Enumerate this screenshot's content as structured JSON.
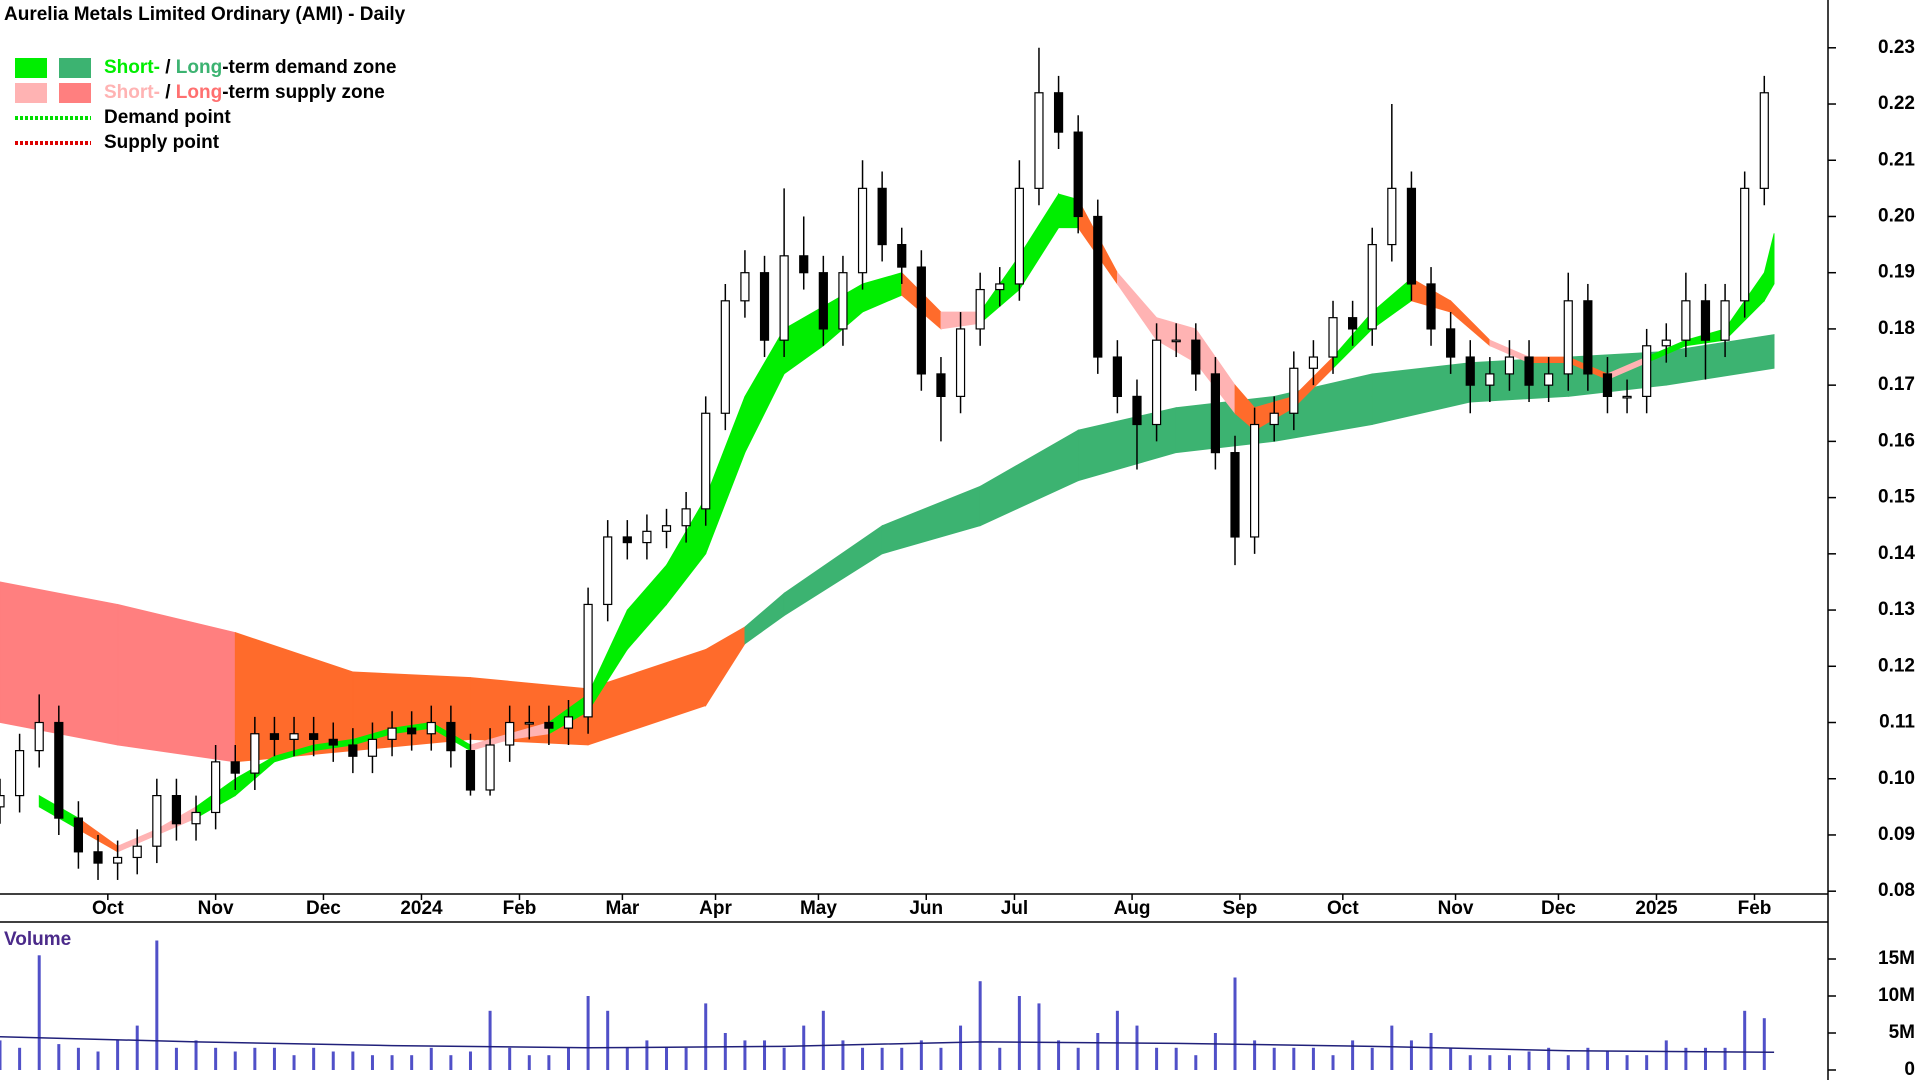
{
  "chart_data": {
    "type": "candlestick",
    "title": "Aurelia Metals Limited Ordinary (AMI) - Daily",
    "legend": [
      {
        "label_parts": [
          "Short-",
          " / ",
          "Long",
          "-term demand zone"
        ],
        "part_colors": [
          "#00ee00",
          "#000000",
          "#3cb371",
          "#000000"
        ],
        "swatch_colors": [
          "#00ee00",
          "#3cb371"
        ]
      },
      {
        "label_parts": [
          "Short-",
          " / ",
          "Long",
          "-term supply zone"
        ],
        "part_colors": [
          "#ffb3b3",
          "#000000",
          "#ff7070",
          "#000000"
        ],
        "swatch_colors": [
          "#ffb3b3",
          "#ff7f7f"
        ]
      },
      {
        "label": "Demand point",
        "line_color": "#00dd00"
      },
      {
        "label": "Supply point",
        "line_color": "#dd0000"
      }
    ],
    "x": [
      0,
      4,
      8,
      12,
      16,
      20,
      24,
      28,
      32,
      36,
      40,
      44,
      48,
      52,
      56,
      60,
      64,
      68,
      72,
      76,
      80,
      84,
      88,
      92,
      96,
      100,
      104,
      108,
      112,
      116,
      120,
      124,
      128,
      132,
      136,
      140,
      144,
      148,
      152,
      156,
      160,
      164,
      168,
      172,
      176,
      180,
      184,
      188,
      192,
      196,
      200,
      204,
      208,
      212,
      216,
      220,
      224,
      228,
      232,
      236,
      240,
      244,
      248,
      252,
      256,
      260,
      264,
      268,
      272,
      276,
      280,
      284,
      288,
      292,
      296,
      300,
      304,
      308,
      312,
      316,
      320,
      324,
      328,
      332,
      336,
      340,
      344,
      348,
      352,
      356,
      360
    ],
    "open": [
      0.095,
      0.097,
      0.105,
      0.11,
      0.093,
      0.087,
      0.085,
      0.086,
      0.088,
      0.097,
      0.092,
      0.094,
      0.103,
      0.101,
      0.108,
      0.107,
      0.108,
      0.107,
      0.106,
      0.104,
      0.107,
      0.109,
      0.108,
      0.11,
      0.105,
      0.098,
      0.106,
      0.11,
      0.11,
      0.109,
      0.111,
      0.131,
      0.143,
      0.142,
      0.144,
      0.145,
      0.148,
      0.165,
      0.185,
      0.19,
      0.178,
      0.193,
      0.19,
      0.18,
      0.19,
      0.205,
      0.195,
      0.191,
      0.172,
      0.168,
      0.18,
      0.187,
      0.188,
      0.205,
      0.222,
      0.215,
      0.2,
      0.175,
      0.168,
      0.163,
      0.178,
      0.178,
      0.172,
      0.158,
      0.143,
      0.163,
      0.165,
      0.173,
      0.175,
      0.182,
      0.18,
      0.195,
      0.205,
      0.188,
      0.18,
      0.175,
      0.17,
      0.172,
      0.175,
      0.17,
      0.172,
      0.185,
      0.172,
      0.168,
      0.168,
      0.177,
      0.178,
      0.185,
      0.178,
      0.185,
      0.205
    ],
    "high": [
      0.1,
      0.108,
      0.115,
      0.113,
      0.096,
      0.09,
      0.089,
      0.091,
      0.1,
      0.1,
      0.097,
      0.106,
      0.106,
      0.111,
      0.111,
      0.111,
      0.111,
      0.11,
      0.109,
      0.11,
      0.112,
      0.112,
      0.113,
      0.113,
      0.108,
      0.109,
      0.113,
      0.113,
      0.113,
      0.114,
      0.134,
      0.146,
      0.146,
      0.147,
      0.148,
      0.151,
      0.168,
      0.188,
      0.194,
      0.193,
      0.205,
      0.2,
      0.193,
      0.193,
      0.21,
      0.208,
      0.198,
      0.194,
      0.175,
      0.183,
      0.19,
      0.191,
      0.21,
      0.23,
      0.225,
      0.218,
      0.203,
      0.178,
      0.171,
      0.181,
      0.181,
      0.181,
      0.175,
      0.161,
      0.166,
      0.168,
      0.176,
      0.178,
      0.185,
      0.185,
      0.198,
      0.22,
      0.208,
      0.191,
      0.183,
      0.178,
      0.175,
      0.178,
      0.178,
      0.175,
      0.19,
      0.188,
      0.175,
      0.171,
      0.18,
      0.181,
      0.19,
      0.188,
      0.188,
      0.208,
      0.225
    ],
    "low": [
      0.092,
      0.094,
      0.102,
      0.09,
      0.084,
      0.082,
      0.082,
      0.083,
      0.085,
      0.089,
      0.089,
      0.091,
      0.098,
      0.098,
      0.104,
      0.104,
      0.104,
      0.103,
      0.101,
      0.101,
      0.104,
      0.105,
      0.105,
      0.102,
      0.097,
      0.097,
      0.103,
      0.107,
      0.106,
      0.106,
      0.108,
      0.128,
      0.139,
      0.139,
      0.141,
      0.142,
      0.145,
      0.162,
      0.182,
      0.175,
      0.175,
      0.187,
      0.177,
      0.177,
      0.187,
      0.192,
      0.188,
      0.169,
      0.16,
      0.165,
      0.177,
      0.184,
      0.185,
      0.202,
      0.212,
      0.197,
      0.172,
      0.165,
      0.155,
      0.16,
      0.175,
      0.169,
      0.155,
      0.138,
      0.14,
      0.16,
      0.162,
      0.17,
      0.172,
      0.177,
      0.177,
      0.192,
      0.185,
      0.177,
      0.172,
      0.165,
      0.167,
      0.169,
      0.167,
      0.167,
      0.169,
      0.169,
      0.165,
      0.165,
      0.165,
      0.174,
      0.175,
      0.171,
      0.175,
      0.182,
      0.202
    ],
    "close": [
      0.097,
      0.105,
      0.11,
      0.093,
      0.087,
      0.085,
      0.086,
      0.088,
      0.097,
      0.092,
      0.094,
      0.103,
      0.101,
      0.108,
      0.107,
      0.108,
      0.107,
      0.106,
      0.104,
      0.107,
      0.109,
      0.108,
      0.11,
      0.105,
      0.098,
      0.106,
      0.11,
      0.11,
      0.109,
      0.111,
      0.131,
      0.143,
      0.142,
      0.144,
      0.145,
      0.148,
      0.165,
      0.185,
      0.19,
      0.178,
      0.193,
      0.19,
      0.18,
      0.19,
      0.205,
      0.195,
      0.191,
      0.172,
      0.168,
      0.18,
      0.187,
      0.188,
      0.205,
      0.222,
      0.215,
      0.2,
      0.175,
      0.168,
      0.163,
      0.178,
      0.178,
      0.172,
      0.158,
      0.143,
      0.163,
      0.165,
      0.173,
      0.175,
      0.182,
      0.18,
      0.195,
      0.205,
      0.188,
      0.18,
      0.175,
      0.17,
      0.172,
      0.175,
      0.17,
      0.172,
      0.185,
      0.172,
      0.168,
      0.168,
      0.177,
      0.178,
      0.185,
      0.178,
      0.185,
      0.205,
      0.222
    ],
    "up_color": "#ffffff",
    "down_color": "#000000",
    "short_zone": {
      "x": [
        8,
        16,
        24,
        32,
        40,
        48,
        56,
        64,
        72,
        80,
        88,
        96,
        104,
        112,
        120,
        128,
        136,
        144,
        152,
        160,
        168,
        176,
        184,
        192,
        200,
        208,
        216,
        220,
        228,
        236,
        244,
        252,
        256,
        264,
        272,
        280,
        288,
        296,
        304,
        312,
        320,
        328,
        336,
        344,
        352,
        360,
        362
      ],
      "upper": [
        0.097,
        0.093,
        0.088,
        0.091,
        0.095,
        0.1,
        0.104,
        0.106,
        0.107,
        0.109,
        0.11,
        0.106,
        0.108,
        0.11,
        0.115,
        0.13,
        0.138,
        0.15,
        0.168,
        0.18,
        0.184,
        0.188,
        0.19,
        0.183,
        0.183,
        0.193,
        0.204,
        0.203,
        0.19,
        0.182,
        0.18,
        0.17,
        0.166,
        0.168,
        0.175,
        0.183,
        0.189,
        0.185,
        0.178,
        0.175,
        0.175,
        0.172,
        0.175,
        0.178,
        0.18,
        0.19,
        0.197
      ],
      "lower": [
        0.095,
        0.091,
        0.087,
        0.09,
        0.093,
        0.097,
        0.103,
        0.105,
        0.106,
        0.108,
        0.109,
        0.105,
        0.107,
        0.108,
        0.112,
        0.123,
        0.131,
        0.14,
        0.158,
        0.172,
        0.177,
        0.183,
        0.186,
        0.18,
        0.181,
        0.187,
        0.198,
        0.198,
        0.188,
        0.178,
        0.174,
        0.165,
        0.162,
        0.166,
        0.173,
        0.18,
        0.185,
        0.183,
        0.177,
        0.174,
        0.174,
        0.171,
        0.174,
        0.177,
        0.178,
        0.185,
        0.188
      ],
      "colors": [
        "#00ee00",
        "#ff6b2b",
        "#ffb3b3",
        "#ffb3b3",
        "#00ee00",
        "#00ee00",
        "#00ee00",
        "#00ee00",
        "#00ee00",
        "#00ee00",
        "#00ee00",
        "#ffb3b3",
        "#ffb3b3",
        "#00ee00",
        "#00ee00",
        "#00ee00",
        "#00ee00",
        "#00ee00",
        "#00ee00",
        "#00ee00",
        "#00ee00",
        "#00ee00",
        "#ff6b2b",
        "#ffb3b3",
        "#00ee00",
        "#00ee00",
        "#00ee00",
        "#ff6b2b",
        "#ffb3b3",
        "#ffb3b3",
        "#ffb3b3",
        "#ff6b2b",
        "#ff6b2b",
        "#ff6b2b",
        "#00ee00",
        "#00ee00",
        "#ff6b2b",
        "#ff6b2b",
        "#ffb3b3",
        "#ff6b2b",
        "#ff6b2b",
        "#ffb3b3",
        "#00ee00",
        "#00ee00",
        "#00ee00",
        "#00ee00",
        "#00ee00"
      ]
    },
    "long_zone": {
      "x": [
        0,
        24,
        48,
        72,
        96,
        120,
        144,
        152,
        160,
        180,
        200,
        220,
        240,
        260,
        280,
        300,
        320,
        340,
        362
      ],
      "upper": [
        0.135,
        0.131,
        0.126,
        0.119,
        0.118,
        0.116,
        0.123,
        0.127,
        0.133,
        0.145,
        0.152,
        0.162,
        0.166,
        0.168,
        0.172,
        0.174,
        0.175,
        0.176,
        0.179
      ],
      "lower": [
        0.11,
        0.106,
        0.103,
        0.105,
        0.107,
        0.106,
        0.113,
        0.124,
        0.129,
        0.14,
        0.145,
        0.153,
        0.158,
        0.16,
        0.163,
        0.167,
        0.168,
        0.17,
        0.173
      ],
      "colors": [
        "#ff7f7f",
        "#ff7f7f",
        "#ff6b2b",
        "#ff6b2b",
        "#ff6b2b",
        "#ff6b2b",
        "#ff6b2b",
        "#3cb371",
        "#3cb371",
        "#3cb371",
        "#3cb371",
        "#3cb371",
        "#3cb371",
        "#3cb371",
        "#3cb371",
        "#3cb371",
        "#3cb371",
        "#3cb371",
        "#3cb371"
      ]
    },
    "xlim": [
      0,
      373
    ],
    "xticks": [
      {
        "value": 22,
        "label": "Oct"
      },
      {
        "value": 44,
        "label": "Nov"
      },
      {
        "value": 66,
        "label": "Dec"
      },
      {
        "value": 86,
        "label": "2024"
      },
      {
        "value": 106,
        "label": "Feb"
      },
      {
        "value": 127,
        "label": "Mar"
      },
      {
        "value": 146,
        "label": "Apr"
      },
      {
        "value": 167,
        "label": "May"
      },
      {
        "value": 189,
        "label": "Jun"
      },
      {
        "value": 207,
        "label": "Jul"
      },
      {
        "value": 231,
        "label": "Aug"
      },
      {
        "value": 253,
        "label": "Sep"
      },
      {
        "value": 274,
        "label": "Oct"
      },
      {
        "value": 297,
        "label": "Nov"
      },
      {
        "value": 318,
        "label": "Dec"
      },
      {
        "value": 338,
        "label": "2025"
      },
      {
        "value": 358,
        "label": "Feb"
      }
    ],
    "ylim": [
      0.0795,
      0.2385
    ],
    "yticks": [
      0.08,
      0.09,
      {
        "value": 0.1,
        "label": "0.10"
      },
      0.11,
      0.12,
      0.13,
      0.14,
      0.15,
      0.16,
      0.17,
      0.18,
      0.19,
      {
        "value": 0.2,
        "label": "0.20"
      },
      0.21,
      0.22,
      0.23
    ],
    "volume": {
      "title": "Volume",
      "color": "#5050c8",
      "values": [
        4,
        3,
        15.5,
        3.5,
        3,
        2.5,
        4,
        6,
        17.5,
        3,
        4,
        3,
        2.5,
        3,
        3,
        2,
        3,
        2.5,
        2.5,
        2,
        2,
        2,
        3,
        2,
        2.5,
        8,
        3,
        2,
        2,
        3,
        10,
        8,
        3,
        4,
        3,
        3,
        9,
        5,
        4,
        4,
        3,
        6,
        8,
        4,
        3,
        3,
        3,
        4,
        3,
        6,
        12,
        3,
        10,
        9,
        4,
        3,
        5,
        8,
        6,
        3,
        3,
        2,
        5,
        12.5,
        4,
        3,
        3,
        3,
        2,
        4,
        3,
        6,
        4,
        5,
        3,
        2,
        2,
        2,
        2.5,
        3,
        2,
        3,
        2.5,
        2,
        2,
        4,
        3,
        3,
        3,
        8,
        7
      ],
      "average": {
        "x": [
          0,
          40,
          80,
          120,
          160,
          200,
          240,
          280,
          320,
          362
        ],
        "values": [
          4.5,
          3.8,
          3.3,
          3.0,
          3.2,
          3.8,
          3.6,
          3.2,
          2.6,
          2.4
        ],
        "color": "#20207a"
      },
      "ylim": [
        0,
        20
      ],
      "yticks": [
        0,
        {
          "value": 5,
          "label": "5M"
        },
        {
          "value": 10,
          "label": "10M"
        },
        {
          "value": 15,
          "label": "15M"
        }
      ]
    }
  }
}
